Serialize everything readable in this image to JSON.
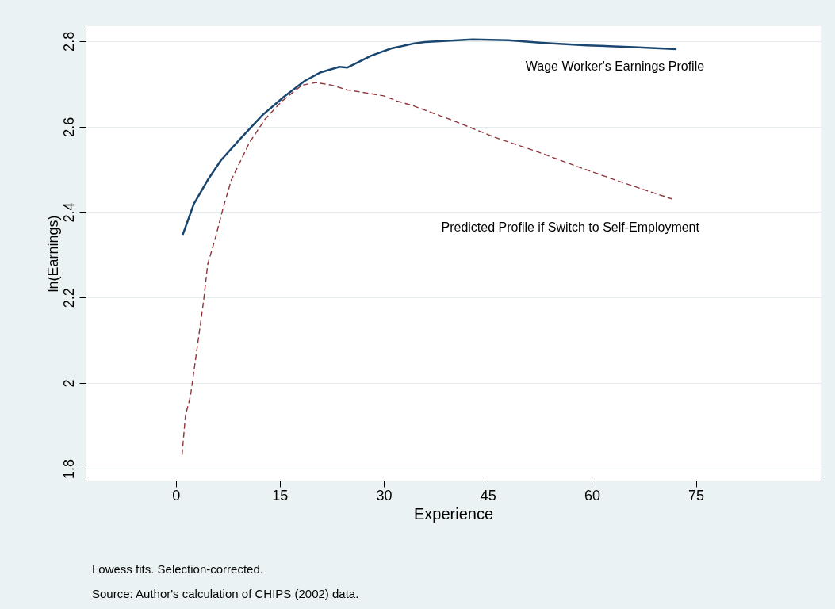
{
  "chart_data": {
    "type": "line",
    "xlabel": "Experience",
    "ylabel": "ln(Earnings)",
    "xlim": [
      -13,
      93
    ],
    "xticks": [
      0,
      15,
      30,
      45,
      60,
      75
    ],
    "ylim": [
      1.772,
      2.835
    ],
    "yticks": [
      1.8,
      2,
      2.2,
      2.4,
      2.6,
      2.8
    ],
    "grid": "y",
    "legend": false,
    "series": [
      {
        "name": "Wage Worker's Earnings Profile",
        "color": "#1a476f",
        "line_style": "solid",
        "x": [
          1.0,
          2.6,
          4.6,
          6.5,
          9.5,
          12.5,
          15.6,
          18.6,
          20.9,
          23.6,
          24.7,
          28.2,
          31.1,
          34.2,
          35.9,
          42.8,
          48.0,
          52.8,
          59.3,
          66.1,
          72.2
        ],
        "values": [
          2.347,
          2.419,
          2.475,
          2.521,
          2.575,
          2.627,
          2.67,
          2.707,
          2.727,
          2.74,
          2.738,
          2.766,
          2.783,
          2.794,
          2.798,
          2.804,
          2.802,
          2.796,
          2.79,
          2.786,
          2.781
        ]
      },
      {
        "name": "Predicted Profile if Switch to Self-Employment",
        "color": "#90353b",
        "line_style": "dashed",
        "x": [
          0.9,
          1.4,
          2.1,
          3.0,
          4.0,
          4.6,
          5.7,
          6.8,
          8.0,
          9.5,
          10.6,
          12.9,
          15.2,
          18.2,
          20.2,
          22.5,
          24.7,
          30.0,
          31.9,
          34.2,
          40.0,
          46.0,
          52.0,
          58.0,
          64.1,
          71.5
        ],
        "values": [
          1.832,
          1.925,
          1.968,
          2.073,
          2.191,
          2.278,
          2.339,
          2.408,
          2.475,
          2.525,
          2.562,
          2.618,
          2.658,
          2.697,
          2.703,
          2.697,
          2.686,
          2.672,
          2.66,
          2.649,
          2.614,
          2.575,
          2.542,
          2.506,
          2.471,
          2.431
        ]
      }
    ],
    "annotations": [
      "Lowess fits. Selection-corrected.",
      "Source: Author's calculation of CHIPS (2002) data."
    ]
  }
}
